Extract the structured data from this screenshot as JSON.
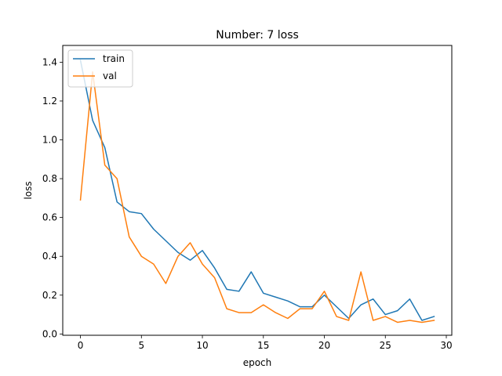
{
  "chart_data": {
    "type": "line",
    "title": "Number: 7 loss",
    "xlabel": "epoch",
    "ylabel": "loss",
    "xlim": [
      -1.45,
      30.45
    ],
    "ylim": [
      -0.0067,
      1.4863
    ],
    "xticks": [
      0,
      5,
      10,
      15,
      20,
      25,
      30
    ],
    "yticks": [
      0.0,
      0.2,
      0.4,
      0.6,
      0.8,
      1.0,
      1.2,
      1.4
    ],
    "ytick_labels": [
      "0.0",
      "0.2",
      "0.4",
      "0.6",
      "0.8",
      "1.0",
      "1.2",
      "1.4"
    ],
    "grid": false,
    "legend_position": "top-left",
    "x": [
      0,
      1,
      2,
      3,
      4,
      5,
      6,
      7,
      8,
      9,
      10,
      11,
      12,
      13,
      14,
      15,
      16,
      17,
      18,
      19,
      20,
      21,
      22,
      23,
      24,
      25,
      26,
      27,
      28,
      29
    ],
    "series": [
      {
        "name": "train",
        "color": "#1f77b4",
        "values": [
          1.41,
          1.1,
          0.96,
          0.68,
          0.63,
          0.62,
          0.54,
          0.48,
          0.42,
          0.38,
          0.43,
          0.34,
          0.23,
          0.22,
          0.32,
          0.21,
          0.19,
          0.17,
          0.14,
          0.14,
          0.2,
          0.14,
          0.08,
          0.15,
          0.18,
          0.1,
          0.12,
          0.18,
          0.07,
          0.09
        ]
      },
      {
        "name": "val",
        "color": "#ff7f0e",
        "values": [
          0.69,
          1.35,
          0.87,
          0.8,
          0.5,
          0.4,
          0.36,
          0.26,
          0.4,
          0.47,
          0.36,
          0.29,
          0.13,
          0.11,
          0.11,
          0.15,
          0.11,
          0.08,
          0.13,
          0.13,
          0.22,
          0.09,
          0.07,
          0.32,
          0.07,
          0.09,
          0.06,
          0.07,
          0.06,
          0.07
        ]
      }
    ]
  }
}
